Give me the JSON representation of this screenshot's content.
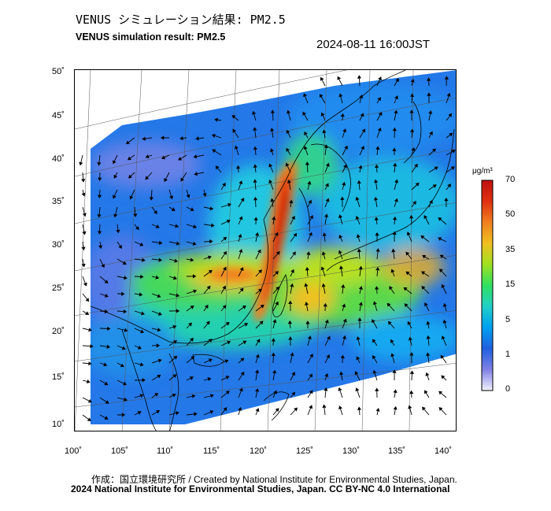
{
  "header": {
    "title_jp": "VENUS シミュレーション結果: PM2.5",
    "title_en": "VENUS simulation result: PM2.5",
    "timestamp": "2024-08-11 16:00JST"
  },
  "map": {
    "x_ticks": [
      "100˚",
      "105˚",
      "110˚",
      "115˚",
      "120˚",
      "125˚",
      "130˚",
      "135˚",
      "140˚"
    ],
    "y_ticks": [
      "50˚",
      "45˚",
      "40˚",
      "35˚",
      "30˚",
      "25˚",
      "20˚",
      "15˚",
      "10˚"
    ],
    "longitude_range": [
      100,
      141
    ],
    "latitude_range": [
      9,
      50
    ]
  },
  "colorbar": {
    "unit": "μg/m³",
    "labels": [
      "70",
      "50",
      "35",
      "15",
      "5",
      "1",
      "0"
    ],
    "colors": [
      "#f2f2ff",
      "#8080e6",
      "#2060e0",
      "#00a0f0",
      "#20d0c8",
      "#30e060",
      "#a0e020",
      "#f0c020",
      "#f08020",
      "#e03010",
      "#c01010"
    ]
  },
  "footer": {
    "credit": "作成：国立環境研究所 / Created by National Institute for Environmental Studies, Japan.",
    "copyright": "2024 National Institute for Environmental Studies, Japan. CC BY-NC 4.0 International"
  }
}
